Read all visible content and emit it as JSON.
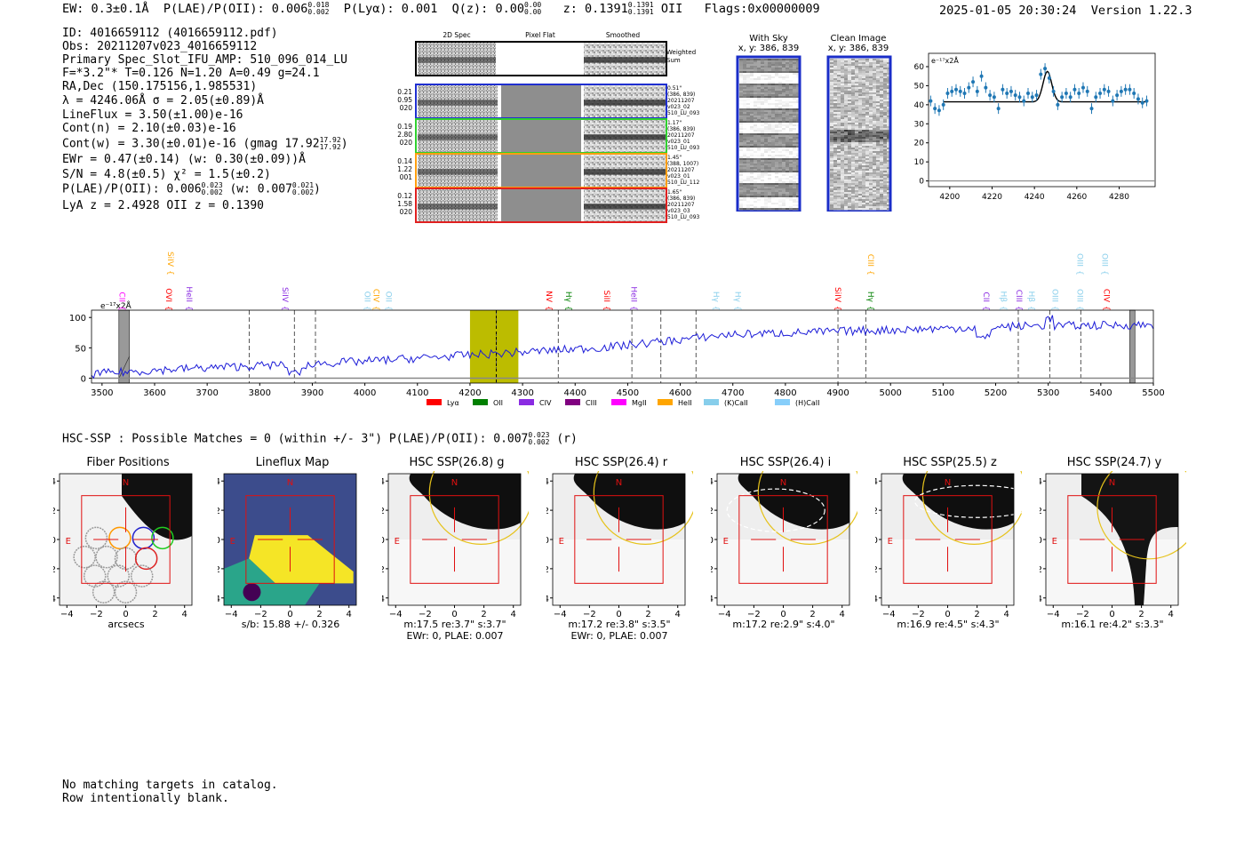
{
  "header": {
    "ew": "EW: 0.3±0.1Å",
    "plae": "P(LAE)/P(OII): 0.006",
    "plae_sup": "0.018",
    "plae_sub": "0.002",
    "plya": "P(Lyα): 0.001",
    "qz": "Q(z): 0.00",
    "qz_sup": "0.00",
    "qz_sub": "0.00",
    "z": "z: 0.1391",
    "z_sup": "0.1391",
    "z_sub": "0.1391",
    "z_line": "OII",
    "flags": "Flags:0x00000009",
    "datetime": "2025-01-05 20:30:24",
    "version": "Version 1.22.3"
  },
  "info": {
    "id": "ID: 4016659112 (4016659112.pdf)",
    "obs": "Obs: 20211207v023_4016659112",
    "primary": "Primary Spec_Slot_IFU_AMP: 510_096_014_LU",
    "fratio": "F=*3.2\"*  T=0.126  N=1.20  A=0.49  g=24.1",
    "radec": "RA,Dec (150.175156,1.985531)",
    "lambda": "λ = 4246.06Å  σ = 2.05(±0.89)Å",
    "lineflux": "LineFlux = 3.50(±1.00)e-16",
    "contn": "Cont(n) = 2.10(±0.03)e-16",
    "contw": "Cont(w) = 3.30(±0.01)e-16 (gmag 17.92",
    "contw_sup": "17.92",
    "contw_sub": "17.92",
    "contw_end": ")",
    "ewr": "EWr = 0.47(±0.14) (w: 0.30(±0.09))Å",
    "sn": "S/N = 4.8(±0.5)  χ² = 1.5(±0.2)",
    "plae": "P(LAE)/P(OII): 0.006",
    "plae_sup": "0.023",
    "plae_sub": "0.002",
    "plae_w": "(w: 0.007",
    "plae_w_sup": "0.021",
    "plae_w_sub": "0.002",
    "plae_w_end": ")",
    "lya_z": "LyA z = 2.4928   OII z = 0.1390"
  },
  "cutouts": {
    "col_titles": [
      "2D Spec",
      "Pixel Flat",
      "Smoothed"
    ],
    "weighted_label": "Weighted Sum",
    "rows": [
      {
        "left": [
          "0.21",
          "0.95",
          "020"
        ],
        "right": [
          "0.51\"",
          "(386, 839)",
          "20211207",
          "v023_02",
          "510_LU_093"
        ],
        "color": "#1f2fd0"
      },
      {
        "left": [
          "0.19",
          "2.80",
          "020"
        ],
        "right": [
          "1.17\"",
          "(386, 839)",
          "20211207",
          "v023_01",
          "510_LU_093"
        ],
        "color": "#2fd02f"
      },
      {
        "left": [
          "0.14",
          "1.22",
          "001"
        ],
        "right": [
          "1.45\"",
          "(388, 1007)",
          "20211207",
          "v023_01",
          "510_LU_112"
        ],
        "color": "#ff9f10"
      },
      {
        "left": [
          "0.12",
          "1.58",
          "020"
        ],
        "right": [
          "1.65\"",
          "(386, 839)",
          "20211207",
          "v023_03",
          "510_LU_093"
        ],
        "color": "#e02020"
      }
    ],
    "with_sky": {
      "title": "With Sky",
      "coords": "x, y: 386, 839"
    },
    "clean": {
      "title": "Clean Image",
      "coords": "x, y: 386, 839"
    }
  },
  "zoom_chart": {
    "ylabel": "e⁻¹⁷x2Å",
    "xticks": [
      "4200",
      "4220",
      "4240",
      "4260",
      "4280"
    ],
    "yticks": [
      "0",
      "10",
      "20",
      "30",
      "40",
      "50",
      "60"
    ],
    "xlim": [
      4190,
      4297
    ],
    "ylim": [
      -3,
      67
    ],
    "fit": {
      "baseline": 41.5,
      "center": 4246.1,
      "sigma": 2.05,
      "amp": 16
    },
    "points_x": [
      4191,
      4193,
      4195,
      4197,
      4199,
      4201,
      4203,
      4205,
      4207,
      4209,
      4211,
      4213,
      4215,
      4217,
      4219,
      4221,
      4223,
      4225,
      4227,
      4229,
      4231,
      4233,
      4235,
      4237,
      4239,
      4241,
      4243,
      4245,
      4247,
      4249,
      4251,
      4253,
      4255,
      4257,
      4259,
      4261,
      4263,
      4265,
      4267,
      4269,
      4271,
      4273,
      4275,
      4277,
      4279,
      4281,
      4283,
      4285,
      4287,
      4289,
      4291,
      4293
    ],
    "points_y": [
      42,
      38,
      37,
      40,
      46,
      47,
      48,
      47,
      46,
      49,
      52,
      47,
      55,
      49,
      45,
      44,
      38,
      48,
      46,
      47,
      45,
      44,
      42,
      46,
      44,
      45,
      56,
      59,
      54,
      47,
      40,
      44,
      46,
      44,
      48,
      46,
      49,
      47,
      38,
      44,
      46,
      48,
      47,
      42,
      45,
      47,
      48,
      48,
      46,
      43,
      41,
      42
    ]
  },
  "spectrum": {
    "ylabel": "e⁻¹⁷x2Å",
    "xticks": [
      "3500",
      "3600",
      "3700",
      "3800",
      "3900",
      "4000",
      "4100",
      "4200",
      "4300",
      "4400",
      "4500",
      "4600",
      "4700",
      "4800",
      "4900",
      "5000",
      "5100",
      "5200",
      "5300",
      "5400",
      "5500"
    ],
    "yticks": [
      "0",
      "50",
      "100"
    ],
    "xlim": [
      3480,
      5500
    ],
    "ylim": [
      -8,
      112
    ],
    "highlight": [
      4200,
      4292
    ],
    "legend": [
      {
        "label": "Lyα",
        "color": "#ff0000"
      },
      {
        "label": "OII",
        "color": "#008000"
      },
      {
        "label": "CIV",
        "color": "#8a2be2"
      },
      {
        "label": "CIII",
        "color": "#800080"
      },
      {
        "label": "MgII",
        "color": "#ff00ff"
      },
      {
        "label": "HeII",
        "color": "#ffa500"
      },
      {
        "label": "(K)CaII",
        "color": "#87ceeb"
      },
      {
        "label": "(H)CaII",
        "color": "#87cefa"
      }
    ],
    "markers": [
      {
        "label": "CII",
        "x": 3528,
        "row": 1,
        "color": "#ff00ff"
      },
      {
        "label": "SiIV",
        "x": 3620,
        "row": 0,
        "color": "#ffa500"
      },
      {
        "label": "OVI",
        "x": 3617,
        "row": 1,
        "color": "#ff0000"
      },
      {
        "label": "HeII",
        "x": 3656,
        "row": 1,
        "color": "#8a2be2"
      },
      {
        "label": "SiIV",
        "x": 3838,
        "row": 1,
        "color": "#8a2be2"
      },
      {
        "label": "OII",
        "x": 3995,
        "row": 1,
        "color": "#87ceeb"
      },
      {
        "label": "CIV",
        "x": 4012,
        "row": 1,
        "color": "#ffa500"
      },
      {
        "label": "OII",
        "x": 4035,
        "row": 1,
        "color": "#87ceeb"
      },
      {
        "label": "NV",
        "x": 4340,
        "row": 1,
        "color": "#ff0000"
      },
      {
        "label": "Hγ",
        "x": 4378,
        "row": 1,
        "color": "#008000"
      },
      {
        "label": "SiII",
        "x": 4450,
        "row": 1,
        "color": "#ff0000"
      },
      {
        "label": "HeII",
        "x": 4502,
        "row": 1,
        "color": "#8a2be2"
      },
      {
        "label": "Hγ",
        "x": 4658,
        "row": 1,
        "color": "#87ceeb"
      },
      {
        "label": "Hγ",
        "x": 4700,
        "row": 1,
        "color": "#87ceeb"
      },
      {
        "label": "SiIV",
        "x": 4890,
        "row": 1,
        "color": "#ff0000"
      },
      {
        "label": "CIII",
        "x": 4952,
        "row": 0,
        "color": "#ffa500"
      },
      {
        "label": "Hγ",
        "x": 4952,
        "row": 1,
        "color": "#008000"
      },
      {
        "label": "CII",
        "x": 5172,
        "row": 1,
        "color": "#8a2be2"
      },
      {
        "label": "Hβ",
        "x": 5205,
        "row": 1,
        "color": "#87ceeb"
      },
      {
        "label": "CIII",
        "x": 5235,
        "row": 1,
        "color": "#8a2be2"
      },
      {
        "label": "Hβ",
        "x": 5258,
        "row": 1,
        "color": "#87ceeb"
      },
      {
        "label": "OIII",
        "x": 5303,
        "row": 1,
        "color": "#87ceeb"
      },
      {
        "label": "OIII",
        "x": 5350,
        "row": 0,
        "color": "#87ceeb"
      },
      {
        "label": "OIII",
        "x": 5350,
        "row": 1,
        "color": "#87ceeb"
      },
      {
        "label": "OIII",
        "x": 5398,
        "row": 0,
        "color": "#87ceeb"
      },
      {
        "label": "CIV",
        "x": 5401,
        "row": 1,
        "color": "#ff0000"
      }
    ],
    "dashed_x": [
      3780,
      3866,
      3906,
      4250,
      4368,
      4508,
      4563,
      4630,
      4900,
      4953,
      5243,
      5303,
      5362
    ]
  },
  "hsc_summary": {
    "text": "HSC-SSP : Possible Matches = 0 (within +/- 3\")  P(LAE)/P(OII): 0.007",
    "sup": "0.023",
    "sub": "0.002",
    "end": "(r)"
  },
  "panels": [
    {
      "title": "Fiber Positions",
      "caption": [
        "arcsecs"
      ]
    },
    {
      "title": "Lineflux Map",
      "caption": [
        "s/b: 15.88 +/- 0.326"
      ]
    },
    {
      "title": "HSC SSP(26.8) g",
      "caption": [
        "m:17.5  re:3.7\"  s:3.7\"",
        "EWr: 0, PLAE: 0.007"
      ]
    },
    {
      "title": "HSC SSP(26.4) r",
      "caption": [
        "m:17.2  re:3.8\"  s:3.5\"",
        "EWr: 0, PLAE: 0.007"
      ]
    },
    {
      "title": "HSC SSP(26.4) i",
      "caption": [
        "m:17.2  re:2.9\"  s:4.0\""
      ]
    },
    {
      "title": "HSC SSP(25.5) z",
      "caption": [
        "m:16.9  re:4.5\"  s:4.3\""
      ]
    },
    {
      "title": "HSC SSP(24.7) y",
      "caption": [
        "m:16.1  re:4.2\"  s:3.3\""
      ]
    }
  ],
  "panel_axis": {
    "ticks": [
      "−4",
      "−2",
      "0",
      "2",
      "4"
    ],
    "north": "N",
    "east": "E"
  },
  "footer": {
    "line1": "No matching targets in catalog.",
    "line2": "Row intentionally blank."
  }
}
